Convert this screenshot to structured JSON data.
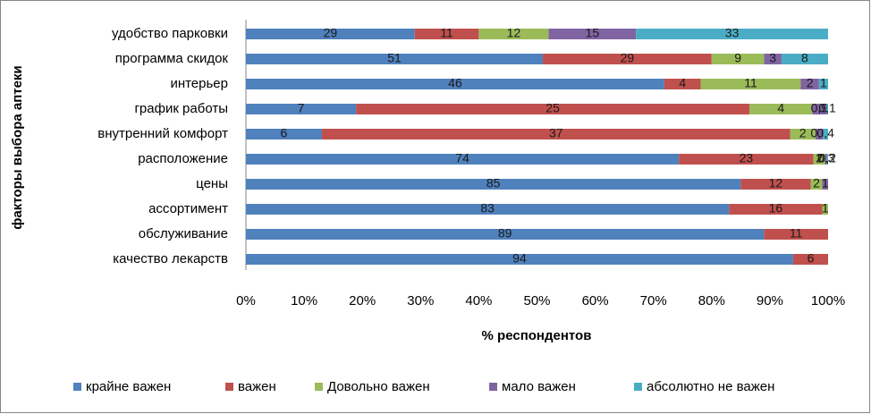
{
  "chart_data": {
    "type": "bar",
    "orientation": "horizontal",
    "stacked": "percent",
    "xlabel": "% респондентов",
    "ylabel": "факторы выбора аптеки",
    "categories": [
      "удобство парковки",
      "программа скидок",
      "интерьер",
      "график работы",
      "внутренний комфорт",
      "расположение",
      "цены",
      "ассортимент",
      "обслуживание",
      "качество лекарств"
    ],
    "series": [
      {
        "name": "крайне важен",
        "color": "#4f81bd",
        "values": [
          29,
          51,
          46,
          7,
          6,
          74,
          85,
          83,
          89,
          94
        ]
      },
      {
        "name": "важен",
        "color": "#c0504d",
        "values": [
          11,
          29,
          4,
          25,
          37,
          23,
          12,
          16,
          11,
          6
        ]
      },
      {
        "name": "Довольно важен",
        "color": "#9bbb59",
        "values": [
          12,
          9,
          11,
          4,
          2,
          2,
          2,
          1,
          null,
          null
        ]
      },
      {
        "name": "мало важен",
        "color": "#8064a2",
        "values": [
          15,
          3,
          2,
          0.9,
          0.6,
          0.3,
          1,
          null,
          null,
          null
        ],
        "value_labels": [
          null,
          null,
          null,
          "0,9",
          "0,6",
          "0,3",
          null,
          null,
          null,
          null
        ]
      },
      {
        "name": "абсолютно не важен",
        "color": "#4bacc6",
        "values": [
          33,
          8,
          1,
          0.1,
          0.4,
          0.2,
          null,
          null,
          null,
          null
        ],
        "value_labels": [
          null,
          null,
          null,
          "0,1",
          "0,4",
          "0,2",
          null,
          null,
          null,
          null
        ]
      }
    ],
    "xlim": [
      0,
      100
    ],
    "xticks": [
      {
        "value": 0,
        "label": "0%"
      },
      {
        "value": 10,
        "label": "10%"
      },
      {
        "value": 20,
        "label": "20%"
      },
      {
        "value": 30,
        "label": "30%"
      },
      {
        "value": 40,
        "label": "40%"
      },
      {
        "value": 50,
        "label": "50%"
      },
      {
        "value": 60,
        "label": "60%"
      },
      {
        "value": 70,
        "label": "70%"
      },
      {
        "value": 80,
        "label": "80%"
      },
      {
        "value": 90,
        "label": "90%"
      },
      {
        "value": 100,
        "label": "100%"
      }
    ],
    "legend": "bottom"
  }
}
